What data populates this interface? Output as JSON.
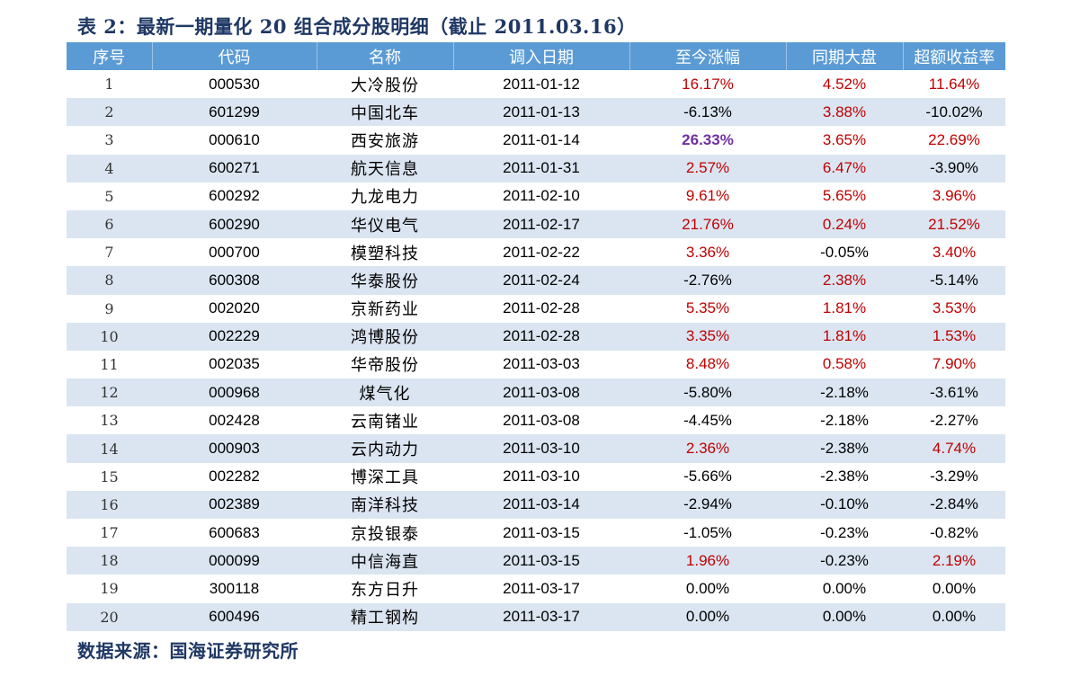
{
  "title": "表 2：最新一期量化 20 组合成分股明细（截止 2011.03.16）",
  "source": "数据来源：国海证券研究所",
  "colors": {
    "header_bg": "#5b9bd5",
    "stripe_bg": "#dbe5f1",
    "positive": "#c00000",
    "highlight": "#7030a0"
  },
  "table": {
    "headers": [
      "序号",
      "代码",
      "名称",
      "调入日期",
      "至今涨幅",
      "同期大盘",
      "超额收益率"
    ],
    "rows": [
      {
        "seq": "1",
        "code": "000530",
        "name": "大冷股份",
        "date": "2011-01-12",
        "gain": "16.17%",
        "gain_style": "pos",
        "market": "4.52%",
        "market_style": "pos",
        "excess": "11.64%",
        "excess_style": "pos"
      },
      {
        "seq": "2",
        "code": "601299",
        "name": "中国北车",
        "date": "2011-01-13",
        "gain": "-6.13%",
        "gain_style": "neg",
        "market": "3.88%",
        "market_style": "pos",
        "excess": "-10.02%",
        "excess_style": "neg"
      },
      {
        "seq": "3",
        "code": "000610",
        "name": "西安旅游",
        "date": "2011-01-14",
        "gain": "26.33%",
        "gain_style": "hl",
        "market": "3.65%",
        "market_style": "pos",
        "excess": "22.69%",
        "excess_style": "pos"
      },
      {
        "seq": "4",
        "code": "600271",
        "name": "航天信息",
        "date": "2011-01-31",
        "gain": "2.57%",
        "gain_style": "pos",
        "market": "6.47%",
        "market_style": "pos",
        "excess": "-3.90%",
        "excess_style": "neg"
      },
      {
        "seq": "5",
        "code": "600292",
        "name": "九龙电力",
        "date": "2011-02-10",
        "gain": "9.61%",
        "gain_style": "pos",
        "market": "5.65%",
        "market_style": "pos",
        "excess": "3.96%",
        "excess_style": "pos"
      },
      {
        "seq": "6",
        "code": "600290",
        "name": "华仪电气",
        "date": "2011-02-17",
        "gain": "21.76%",
        "gain_style": "pos",
        "market": "0.24%",
        "market_style": "pos",
        "excess": "21.52%",
        "excess_style": "pos"
      },
      {
        "seq": "7",
        "code": "000700",
        "name": "模塑科技",
        "date": "2011-02-22",
        "gain": "3.36%",
        "gain_style": "pos",
        "market": "-0.05%",
        "market_style": "neg",
        "excess": "3.40%",
        "excess_style": "pos"
      },
      {
        "seq": "8",
        "code": "600308",
        "name": "华泰股份",
        "date": "2011-02-24",
        "gain": "-2.76%",
        "gain_style": "neg",
        "market": "2.38%",
        "market_style": "pos",
        "excess": "-5.14%",
        "excess_style": "neg"
      },
      {
        "seq": "9",
        "code": "002020",
        "name": "京新药业",
        "date": "2011-02-28",
        "gain": "5.35%",
        "gain_style": "pos",
        "market": "1.81%",
        "market_style": "pos",
        "excess": "3.53%",
        "excess_style": "pos"
      },
      {
        "seq": "10",
        "code": "002229",
        "name": "鸿博股份",
        "date": "2011-02-28",
        "gain": "3.35%",
        "gain_style": "pos",
        "market": "1.81%",
        "market_style": "pos",
        "excess": "1.53%",
        "excess_style": "pos"
      },
      {
        "seq": "11",
        "code": "002035",
        "name": "华帝股份",
        "date": "2011-03-03",
        "gain": "8.48%",
        "gain_style": "pos",
        "market": "0.58%",
        "market_style": "pos",
        "excess": "7.90%",
        "excess_style": "pos"
      },
      {
        "seq": "12",
        "code": "000968",
        "name": "煤气化",
        "date": "2011-03-08",
        "gain": "-5.80%",
        "gain_style": "neg",
        "market": "-2.18%",
        "market_style": "neg",
        "excess": "-3.61%",
        "excess_style": "neg"
      },
      {
        "seq": "13",
        "code": "002428",
        "name": "云南锗业",
        "date": "2011-03-08",
        "gain": "-4.45%",
        "gain_style": "neg",
        "market": "-2.18%",
        "market_style": "neg",
        "excess": "-2.27%",
        "excess_style": "neg"
      },
      {
        "seq": "14",
        "code": "000903",
        "name": "云内动力",
        "date": "2011-03-10",
        "gain": "2.36%",
        "gain_style": "pos",
        "market": "-2.38%",
        "market_style": "neg",
        "excess": "4.74%",
        "excess_style": "pos"
      },
      {
        "seq": "15",
        "code": "002282",
        "name": "博深工具",
        "date": "2011-03-10",
        "gain": "-5.66%",
        "gain_style": "neg",
        "market": "-2.38%",
        "market_style": "neg",
        "excess": "-3.29%",
        "excess_style": "neg"
      },
      {
        "seq": "16",
        "code": "002389",
        "name": "南洋科技",
        "date": "2011-03-14",
        "gain": "-2.94%",
        "gain_style": "neg",
        "market": "-0.10%",
        "market_style": "neg",
        "excess": "-2.84%",
        "excess_style": "neg"
      },
      {
        "seq": "17",
        "code": "600683",
        "name": "京投银泰",
        "date": "2011-03-15",
        "gain": "-1.05%",
        "gain_style": "neg",
        "market": "-0.23%",
        "market_style": "neg",
        "excess": "-0.82%",
        "excess_style": "neg"
      },
      {
        "seq": "18",
        "code": "000099",
        "name": "中信海直",
        "date": "2011-03-15",
        "gain": "1.96%",
        "gain_style": "pos",
        "market": "-0.23%",
        "market_style": "neg",
        "excess": "2.19%",
        "excess_style": "pos"
      },
      {
        "seq": "19",
        "code": "300118",
        "name": "东方日升",
        "date": "2011-03-17",
        "gain": "0.00%",
        "gain_style": "zero",
        "market": "0.00%",
        "market_style": "zero",
        "excess": "0.00%",
        "excess_style": "zero"
      },
      {
        "seq": "20",
        "code": "600496",
        "name": "精工钢构",
        "date": "2011-03-17",
        "gain": "0.00%",
        "gain_style": "zero",
        "market": "0.00%",
        "market_style": "zero",
        "excess": "0.00%",
        "excess_style": "zero"
      }
    ]
  }
}
